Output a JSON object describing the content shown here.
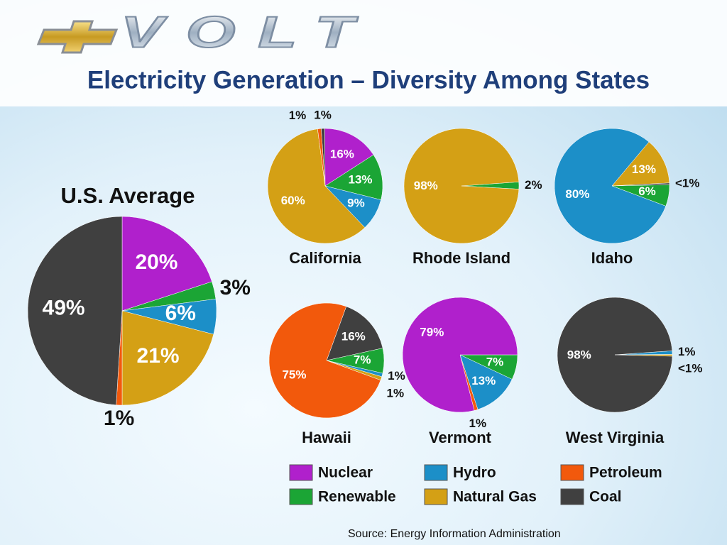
{
  "logo": "VOLT",
  "title": "Electricity Generation – Diversity Among States",
  "source": "Source: Energy Information Administration",
  "legend": [
    {
      "name": "Nuclear",
      "color": "#b020cc"
    },
    {
      "name": "Hydro",
      "color": "#1c8fc8"
    },
    {
      "name": "Petroleum",
      "color": "#f2590c"
    },
    {
      "name": "Renewable",
      "color": "#1ba535"
    },
    {
      "name": "Natural Gas",
      "color": "#d4a015"
    },
    {
      "name": "Coal",
      "color": "#404040"
    }
  ],
  "chart_data": [
    {
      "type": "pie",
      "title": "U.S. Average",
      "categories": [
        "Nuclear",
        "Renewable",
        "Hydro",
        "Natural Gas",
        "Petroleum",
        "Coal"
      ],
      "values": [
        20,
        3,
        6,
        21,
        1,
        49
      ],
      "value_labels": [
        "20%",
        "3%",
        "6%",
        "21%",
        "1%",
        "49%"
      ]
    },
    {
      "type": "pie",
      "title": "California",
      "categories": [
        "Coal",
        "Nuclear",
        "Renewable",
        "Hydro",
        "Natural Gas",
        "Petroleum"
      ],
      "values": [
        1,
        16,
        13,
        9,
        60,
        1
      ],
      "value_labels": [
        "1%",
        "16%",
        "13%",
        "9%",
        "60%",
        "1%"
      ]
    },
    {
      "type": "pie",
      "title": "Rhode Island",
      "categories": [
        "Renewable",
        "Natural Gas"
      ],
      "values": [
        2,
        98
      ],
      "value_labels": [
        "2%",
        "98%"
      ]
    },
    {
      "type": "pie",
      "title": "Idaho",
      "categories": [
        "Natural Gas",
        "Coal",
        "Renewable",
        "Hydro"
      ],
      "values": [
        13,
        0.5,
        6,
        80
      ],
      "value_labels": [
        "13%",
        "<1%",
        "6%",
        "80%"
      ]
    },
    {
      "type": "pie",
      "title": "Hawaii",
      "categories": [
        "Coal",
        "Renewable",
        "Hydro",
        "Natural Gas",
        "Petroleum"
      ],
      "values": [
        16,
        7,
        1,
        1,
        75
      ],
      "value_labels": [
        "16%",
        "7%",
        "1%",
        "1%",
        "75%"
      ]
    },
    {
      "type": "pie",
      "title": "Vermont",
      "categories": [
        "Renewable",
        "Hydro",
        "Petroleum",
        "Nuclear"
      ],
      "values": [
        7,
        13,
        1,
        79
      ],
      "value_labels": [
        "7%",
        "13%",
        "1%",
        "79%"
      ]
    },
    {
      "type": "pie",
      "title": "West Virginia",
      "categories": [
        "Hydro",
        "Natural Gas",
        "Coal"
      ],
      "values": [
        1,
        0.5,
        98
      ],
      "value_labels": [
        "1%",
        "<1%",
        "98%"
      ]
    }
  ]
}
